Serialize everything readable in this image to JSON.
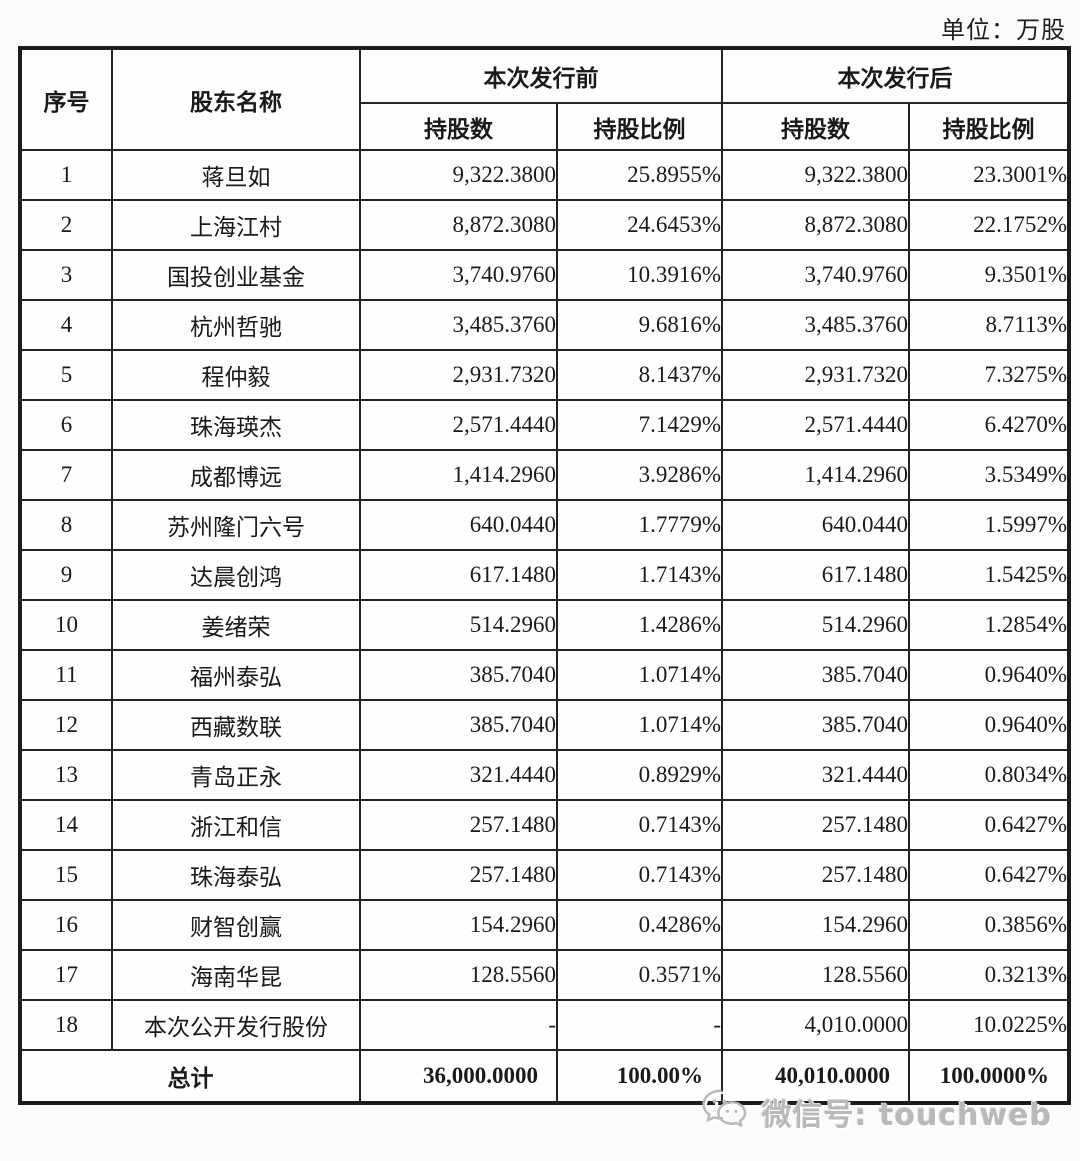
{
  "unit_label": "单位：万股",
  "colors": {
    "border": "#1c1c1c",
    "text": "#1a1a1a",
    "background": "#fbfbfb",
    "watermark_gray": "#b9b9b9"
  },
  "table": {
    "headers": {
      "index": "序号",
      "name": "股东名称",
      "before_group": "本次发行前",
      "after_group": "本次发行后",
      "shares": "持股数",
      "ratio": "持股比例"
    },
    "rows": [
      {
        "no": "1",
        "name": "蒋旦如",
        "pre_shares": "9,322.3800",
        "pre_ratio": "25.8955%",
        "post_shares": "9,322.3800",
        "post_ratio": "23.3001%"
      },
      {
        "no": "2",
        "name": "上海江村",
        "pre_shares": "8,872.3080",
        "pre_ratio": "24.6453%",
        "post_shares": "8,872.3080",
        "post_ratio": "22.1752%"
      },
      {
        "no": "3",
        "name": "国投创业基金",
        "pre_shares": "3,740.9760",
        "pre_ratio": "10.3916%",
        "post_shares": "3,740.9760",
        "post_ratio": "9.3501%"
      },
      {
        "no": "4",
        "name": "杭州哲驰",
        "pre_shares": "3,485.3760",
        "pre_ratio": "9.6816%",
        "post_shares": "3,485.3760",
        "post_ratio": "8.7113%"
      },
      {
        "no": "5",
        "name": "程仲毅",
        "pre_shares": "2,931.7320",
        "pre_ratio": "8.1437%",
        "post_shares": "2,931.7320",
        "post_ratio": "7.3275%"
      },
      {
        "no": "6",
        "name": "珠海瑛杰",
        "pre_shares": "2,571.4440",
        "pre_ratio": "7.1429%",
        "post_shares": "2,571.4440",
        "post_ratio": "6.4270%"
      },
      {
        "no": "7",
        "name": "成都博远",
        "pre_shares": "1,414.2960",
        "pre_ratio": "3.9286%",
        "post_shares": "1,414.2960",
        "post_ratio": "3.5349%"
      },
      {
        "no": "8",
        "name": "苏州隆门六号",
        "pre_shares": "640.0440",
        "pre_ratio": "1.7779%",
        "post_shares": "640.0440",
        "post_ratio": "1.5997%"
      },
      {
        "no": "9",
        "name": "达晨创鸿",
        "pre_shares": "617.1480",
        "pre_ratio": "1.7143%",
        "post_shares": "617.1480",
        "post_ratio": "1.5425%"
      },
      {
        "no": "10",
        "name": "姜绪荣",
        "pre_shares": "514.2960",
        "pre_ratio": "1.4286%",
        "post_shares": "514.2960",
        "post_ratio": "1.2854%"
      },
      {
        "no": "11",
        "name": "福州泰弘",
        "pre_shares": "385.7040",
        "pre_ratio": "1.0714%",
        "post_shares": "385.7040",
        "post_ratio": "0.9640%"
      },
      {
        "no": "12",
        "name": "西藏数联",
        "pre_shares": "385.7040",
        "pre_ratio": "1.0714%",
        "post_shares": "385.7040",
        "post_ratio": "0.9640%"
      },
      {
        "no": "13",
        "name": "青岛正永",
        "pre_shares": "321.4440",
        "pre_ratio": "0.8929%",
        "post_shares": "321.4440",
        "post_ratio": "0.8034%"
      },
      {
        "no": "14",
        "name": "浙江和信",
        "pre_shares": "257.1480",
        "pre_ratio": "0.7143%",
        "post_shares": "257.1480",
        "post_ratio": "0.6427%"
      },
      {
        "no": "15",
        "name": "珠海泰弘",
        "pre_shares": "257.1480",
        "pre_ratio": "0.7143%",
        "post_shares": "257.1480",
        "post_ratio": "0.6427%"
      },
      {
        "no": "16",
        "name": "财智创赢",
        "pre_shares": "154.2960",
        "pre_ratio": "0.4286%",
        "post_shares": "154.2960",
        "post_ratio": "0.3856%"
      },
      {
        "no": "17",
        "name": "海南华昆",
        "pre_shares": "128.5560",
        "pre_ratio": "0.3571%",
        "post_shares": "128.5560",
        "post_ratio": "0.3213%"
      },
      {
        "no": "18",
        "name": "本次公开发行股份",
        "pre_shares": "-",
        "pre_ratio": "-",
        "post_shares": "4,010.0000",
        "post_ratio": "10.0225%"
      }
    ],
    "total": {
      "label": "总计",
      "pre_shares": "36,000.0000",
      "pre_ratio": "100.00%",
      "post_shares": "40,010.0000",
      "post_ratio": "100.0000%"
    }
  },
  "watermark": {
    "icon": "wechat-icon",
    "text": "微信号: touchweb"
  }
}
